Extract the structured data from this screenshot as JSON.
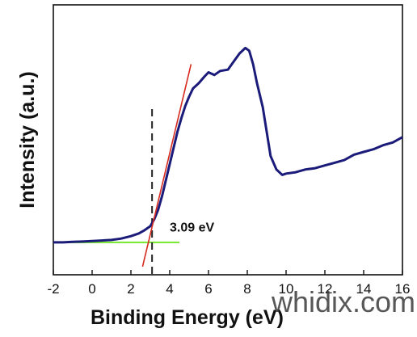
{
  "chart_data": {
    "type": "line",
    "xlabel": "Binding Energy (eV)",
    "ylabel": "Intensity (a.u.)",
    "xlim": [
      -2,
      16
    ],
    "ylim": [
      0,
      100
    ],
    "xticks": [
      "-2",
      "0",
      "2",
      "4",
      "6",
      "8",
      "10",
      "12",
      "14",
      "16"
    ],
    "yticks": [],
    "grid": false,
    "legend": "none",
    "colors": {
      "spectrum": "#1b1b7a",
      "fit": "#d62a1e",
      "baseline": "#7ee83a",
      "marker": "#222222"
    },
    "series": [
      {
        "values_x": [
          -2.0,
          -1.5,
          -1.0,
          -0.5,
          0.0,
          0.5,
          1.0,
          1.5,
          2.0,
          2.4,
          2.7,
          3.0,
          3.2,
          3.4,
          3.6,
          3.8,
          4.0,
          4.2,
          4.4,
          4.6,
          4.8,
          5.0,
          5.2,
          5.5,
          5.8,
          6.0,
          6.3,
          6.6,
          7.0,
          7.3,
          7.6,
          7.9,
          8.1,
          8.3,
          8.5,
          8.8,
          9.0,
          9.2,
          9.5,
          9.8,
          10.0,
          10.5,
          11.0,
          11.5,
          12.0,
          12.5,
          13.0,
          13.5,
          14.0,
          14.5,
          15.0,
          15.5,
          16.0
        ],
        "values_y": [
          12.0,
          12.0,
          12.2,
          12.3,
          12.5,
          12.7,
          12.9,
          13.4,
          14.3,
          15.3,
          16.5,
          18.0,
          20.5,
          24.0,
          29.0,
          35.0,
          41.0,
          47.0,
          53.0,
          58.0,
          62.5,
          66.0,
          69.0,
          71.0,
          73.5,
          75.0,
          74.0,
          75.5,
          76.0,
          79.0,
          82.0,
          84.0,
          83.0,
          78.0,
          71.0,
          62.0,
          53.0,
          44.0,
          39.0,
          37.0,
          37.5,
          38.0,
          39.0,
          39.5,
          40.5,
          41.5,
          42.5,
          44.5,
          45.5,
          46.5,
          48.0,
          49.0,
          51.0
        ]
      }
    ],
    "linear_fit": {
      "x": [
        2.6,
        5.1
      ],
      "y": [
        3.0,
        78.0
      ]
    },
    "baseline": {
      "x": [
        -2.0,
        4.5
      ],
      "y": [
        12.0,
        12.0
      ]
    },
    "onset_line": {
      "x": 3.09
    },
    "annotations": [
      {
        "text": "3.09 eV",
        "x": 4.0,
        "y": 16.0
      }
    ]
  },
  "watermark": "whidix.com"
}
